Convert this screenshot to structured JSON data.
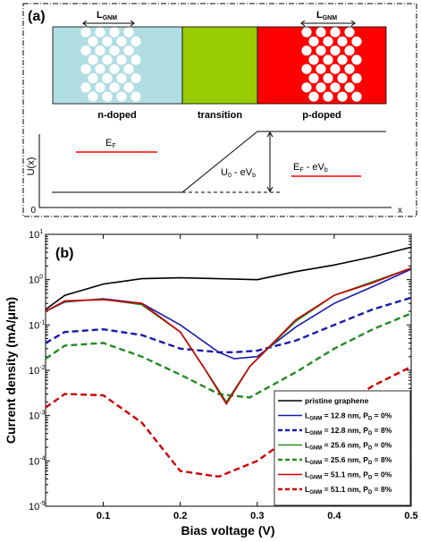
{
  "panel_a": {
    "label": "(a)",
    "regions": [
      {
        "name": "n-doped",
        "color": "#b0dde2"
      },
      {
        "name": "transition",
        "color": "#99cc00"
      },
      {
        "name": "p-doped",
        "color": "#ff0000"
      }
    ],
    "lgnm_left": "L",
    "lgnm_left_sub": "GNM",
    "lgnm_right": "L",
    "lgnm_right_sub": "GNM",
    "yaxis_label": "U(x)",
    "origin_label": "0",
    "xaxis_label": "x",
    "ef_left": "E",
    "ef_left_sub": "F",
    "u0_main": "U",
    "u0_sub": "0",
    "u0_rest": " - eV",
    "u0_rest_sub": "b",
    "ef_right_main": "E",
    "ef_right_sub": "F",
    "ef_right_rest": " - eV",
    "ef_right_rest_sub": "b"
  },
  "panel_b": {
    "label": "(b)",
    "chart_data": {
      "type": "line",
      "xlabel": "Bias voltage (V)",
      "ylabel": "Current density (mA/μm)",
      "xlim": [
        0.025,
        0.5
      ],
      "ylim_exp": [
        -5,
        1
      ],
      "yscale": "log",
      "xticks": [
        "0.1",
        "0.2",
        "0.3",
        "0.4",
        "0.5"
      ],
      "xtick_values": [
        0.1,
        0.2,
        0.3,
        0.4,
        0.5
      ],
      "yticks": [
        {
          "base": "10",
          "exp": "1",
          "value": 1
        },
        {
          "base": "10",
          "exp": "0",
          "value": 0
        },
        {
          "base": "10",
          "exp": "-1",
          "value": -1
        },
        {
          "base": "10",
          "exp": "-2",
          "value": -2
        },
        {
          "base": "10",
          "exp": "-3",
          "value": -3
        },
        {
          "base": "10",
          "exp": "-4",
          "value": -4
        },
        {
          "base": "10",
          "exp": "-5",
          "value": -5
        }
      ],
      "legend_position": "bottom-right",
      "series": [
        {
          "legend_main": "pristine graphene",
          "color": "#000000",
          "dash": false,
          "x": [
            0.025,
            0.05,
            0.1,
            0.15,
            0.2,
            0.25,
            0.3,
            0.35,
            0.4,
            0.45,
            0.5
          ],
          "y": [
            0.22,
            0.45,
            0.8,
            1.05,
            1.1,
            1.05,
            1.0,
            1.5,
            2.1,
            3.2,
            5.2
          ]
        },
        {
          "legend_main": "L",
          "legend_sub1": "GNM",
          "legend_mid": " = 12.8 nm, P",
          "legend_sub2": "D",
          "legend_end": " = 0%",
          "color": "#1a1aaa",
          "dash": false,
          "x": [
            0.025,
            0.05,
            0.1,
            0.15,
            0.2,
            0.25,
            0.27,
            0.3,
            0.35,
            0.4,
            0.45,
            0.5
          ],
          "y": [
            0.2,
            0.32,
            0.38,
            0.3,
            0.1,
            0.025,
            0.018,
            0.02,
            0.09,
            0.3,
            0.7,
            1.7
          ]
        },
        {
          "legend_main": "L",
          "legend_sub1": "GNM",
          "legend_mid": " = 12.8 nm, P",
          "legend_sub2": "D",
          "legend_end": " = 8%",
          "color": "#1a1aaa",
          "dash": true,
          "x": [
            0.025,
            0.05,
            0.1,
            0.15,
            0.2,
            0.25,
            0.27,
            0.3,
            0.35,
            0.4,
            0.45,
            0.5
          ],
          "y": [
            0.04,
            0.07,
            0.08,
            0.06,
            0.03,
            0.025,
            0.025,
            0.027,
            0.045,
            0.1,
            0.22,
            0.4
          ]
        },
        {
          "legend_main": "L",
          "legend_sub1": "GNM",
          "legend_mid": " = 25.6 nm, P",
          "legend_sub2": "D",
          "legend_end": " = 0%",
          "color": "#228b22",
          "dash": false,
          "x": [
            0.025,
            0.05,
            0.1,
            0.15,
            0.2,
            0.23,
            0.26,
            0.29,
            0.35,
            0.4,
            0.45,
            0.5
          ],
          "y": [
            0.2,
            0.33,
            0.37,
            0.28,
            0.07,
            0.012,
            0.002,
            0.012,
            0.12,
            0.45,
            0.9,
            1.8
          ]
        },
        {
          "legend_main": "L",
          "legend_sub1": "GNM",
          "legend_mid": " = 25.6 nm, P",
          "legend_sub2": "D",
          "legend_end": " = 8%",
          "color": "#228b22",
          "dash": true,
          "x": [
            0.025,
            0.05,
            0.1,
            0.15,
            0.2,
            0.25,
            0.29,
            0.35,
            0.4,
            0.45,
            0.5
          ],
          "y": [
            0.018,
            0.035,
            0.04,
            0.02,
            0.008,
            0.003,
            0.0025,
            0.009,
            0.03,
            0.08,
            0.18
          ]
        },
        {
          "legend_main": "L",
          "legend_sub1": "GNM",
          "legend_mid": " = 51.1 nm, P",
          "legend_sub2": "D",
          "legend_end": " = 0%",
          "color": "#cc0000",
          "dash": false,
          "x": [
            0.025,
            0.05,
            0.1,
            0.15,
            0.2,
            0.23,
            0.26,
            0.29,
            0.35,
            0.4,
            0.45,
            0.5
          ],
          "y": [
            0.2,
            0.34,
            0.36,
            0.3,
            0.07,
            0.012,
            0.0018,
            0.012,
            0.13,
            0.45,
            0.85,
            1.8
          ]
        },
        {
          "legend_main": "L",
          "legend_sub1": "GNM",
          "legend_mid": " = 51.1 nm, P",
          "legend_sub2": "D",
          "legend_end": " = 8%",
          "color": "#cc0000",
          "dash": true,
          "x": [
            0.025,
            0.05,
            0.1,
            0.15,
            0.2,
            0.25,
            0.3,
            0.35,
            0.4,
            0.45,
            0.5
          ],
          "y": [
            0.0015,
            0.003,
            0.0028,
            0.0007,
            6e-05,
            4.5e-05,
            0.0001,
            0.0004,
            0.0013,
            0.0045,
            0.012
          ]
        }
      ]
    }
  }
}
